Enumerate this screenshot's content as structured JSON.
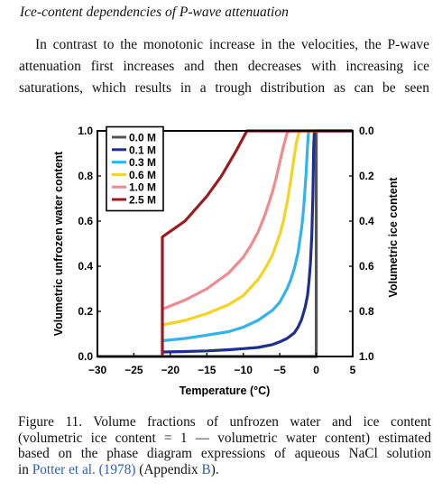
{
  "heading": "Ice-content dependencies of P-wave attenuation",
  "intro_lines": [
    "In contrast to the monotonic increase in the velocities, the P-wave",
    "attenuation first increases and then decreases with increasing ice",
    "saturations, which results in a trough distribution as can be seen"
  ],
  "caption": {
    "line1": "Figure 11. Volume fractions of unfrozen water and ice content",
    "line2": "(volumetric ice content = 1 — volumetric water content) estimated",
    "line3": "based on the phase diagram expressions of aqueous NaCl solution",
    "line4_pre": "in",
    "link1": "Potter et al. (1978)",
    "line4_mid": "(Appendix",
    "link2": "B",
    "line4_post": ")."
  },
  "chart_data": {
    "type": "line",
    "xlabel": "Temperature (°C)",
    "ylabel": "Volumetric unfrozen water content",
    "ylabel_right": "Volumetric ice content",
    "xlim": [
      -30,
      5
    ],
    "ylim": [
      0,
      1
    ],
    "x_ticks": [
      -30,
      -25,
      -20,
      -15,
      -10,
      -5,
      0,
      5
    ],
    "x_tick_labels": [
      "−30",
      "−25",
      "−20",
      "−15",
      "−10",
      "−5",
      "0",
      "5"
    ],
    "y_ticks": [
      0.0,
      0.2,
      0.4,
      0.6,
      0.8,
      1.0
    ],
    "y_tick_labels": [
      "0.0",
      "0.2",
      "0.4",
      "0.6",
      "0.8",
      "1.0"
    ],
    "y_right_tick_labels": [
      "1.0",
      "0.8",
      "0.6",
      "0.4",
      "0.2",
      "0.0"
    ],
    "grid": false,
    "legend_position": "top-left",
    "series": [
      {
        "name": "0.0 M",
        "color": "#555555",
        "x": [
          -30,
          0,
          0,
          5
        ],
        "y": [
          0.0,
          0.0,
          1.0,
          1.0
        ]
      },
      {
        "name": "0.1 M",
        "color": "#1f2f8f",
        "x": [
          -21.1,
          -18,
          -15,
          -12,
          -10,
          -8,
          -6,
          -5,
          -4,
          -3,
          -2.5,
          -2,
          -1.5,
          -1.2,
          -1,
          -0.8,
          -0.6,
          -0.45,
          -0.35,
          -0.25,
          5
        ],
        "y": [
          0.02,
          0.022,
          0.025,
          0.03,
          0.035,
          0.04,
          0.053,
          0.065,
          0.08,
          0.105,
          0.13,
          0.165,
          0.22,
          0.27,
          0.33,
          0.41,
          0.54,
          0.72,
          0.92,
          1.0,
          1.0
        ]
      },
      {
        "name": "0.3 M",
        "color": "#33b3ec",
        "x": [
          -21.1,
          -18,
          -15,
          -12,
          -10,
          -8,
          -6,
          -5,
          -4,
          -3.5,
          -3,
          -2.5,
          -2,
          -1.8,
          -1.6,
          -1.4,
          -1.2,
          -1.05,
          5
        ],
        "y": [
          0.07,
          0.08,
          0.095,
          0.11,
          0.13,
          0.16,
          0.205,
          0.24,
          0.3,
          0.34,
          0.39,
          0.46,
          0.57,
          0.63,
          0.71,
          0.81,
          0.93,
          1.0,
          1.0
        ]
      },
      {
        "name": "0.6 M",
        "color": "#f5d321",
        "x": [
          -21.1,
          -18,
          -15,
          -12,
          -10,
          -8,
          -7,
          -6,
          -5,
          -4.5,
          -4,
          -3.5,
          -3,
          -2.7,
          -2.4,
          -2.2,
          5
        ],
        "y": [
          0.14,
          0.16,
          0.19,
          0.23,
          0.27,
          0.34,
          0.39,
          0.45,
          0.54,
          0.6,
          0.68,
          0.78,
          0.89,
          0.95,
          0.99,
          1.0,
          1.0
        ]
      },
      {
        "name": "1.0 M",
        "color": "#ef8a8e",
        "x": [
          -21.1,
          -18,
          -15,
          -12,
          -10,
          -9,
          -8,
          -7,
          -6,
          -5.5,
          -5,
          -4.5,
          -4,
          -3.7,
          5
        ],
        "y": [
          0.21,
          0.25,
          0.3,
          0.37,
          0.44,
          0.49,
          0.55,
          0.63,
          0.73,
          0.79,
          0.86,
          0.93,
          0.99,
          1.0,
          1.0
        ]
      },
      {
        "name": "2.5 M",
        "color": "#9b1a1f",
        "x": [
          -21.1,
          -21.1,
          -18,
          -15,
          -13,
          -11,
          -10,
          -9.5,
          -9.2,
          5
        ],
        "y": [
          0.0,
          0.53,
          0.6,
          0.71,
          0.8,
          0.91,
          0.97,
          1.0,
          1.0,
          1.0
        ]
      }
    ]
  }
}
